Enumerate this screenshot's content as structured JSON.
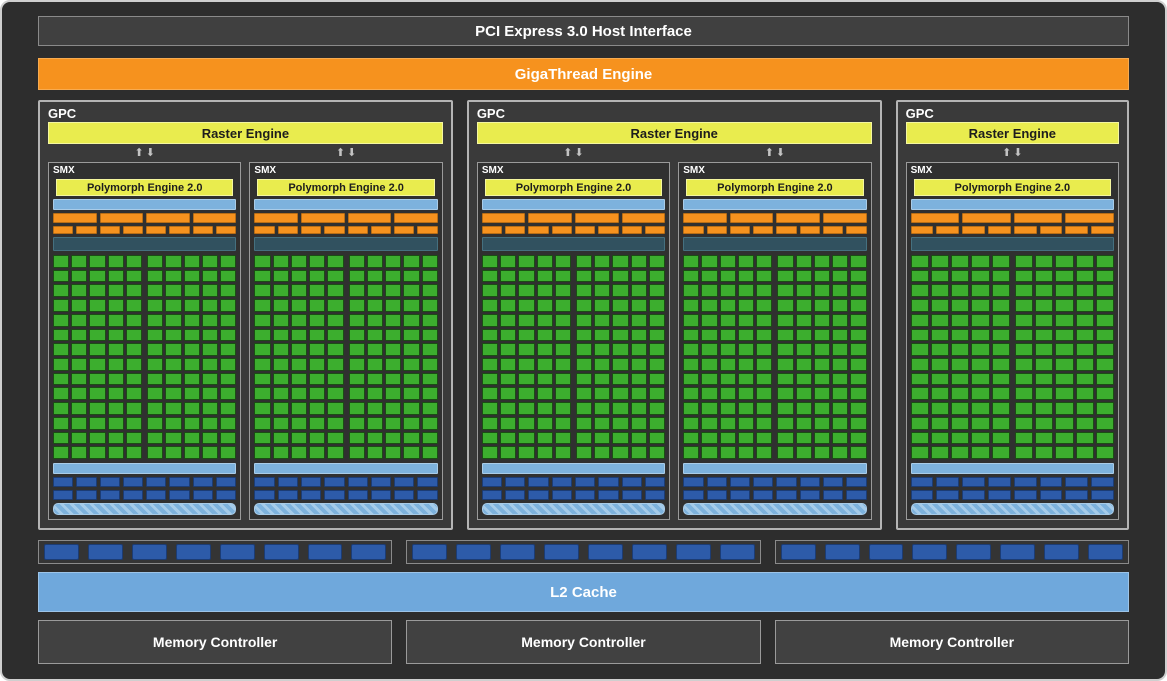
{
  "header": {
    "pci_label": "PCI Express 3.0 Host Interface",
    "gigathread_label": "GigaThread Engine"
  },
  "gpc": {
    "label": "GPC",
    "raster_label": "Raster Engine",
    "instances": [
      {
        "smx_count": 2
      },
      {
        "smx_count": 2
      },
      {
        "smx_count": 1
      }
    ],
    "smx": {
      "label": "SMX",
      "polymorph_label": "Polymorph Engine 2.0",
      "core_columns": 10,
      "core_rows": 14,
      "scheduler_segments": 4,
      "dispatch_segments": 8,
      "texture_rows": 2,
      "texture_segments": 8
    }
  },
  "rops": {
    "group_count": 3,
    "segments_per_group": 8
  },
  "l2_label": "L2 Cache",
  "memory": {
    "label": "Memory Controller",
    "count": 3
  },
  "icons": {
    "up_arrow": "⬆",
    "down_arrow": "⬇"
  },
  "colors": {
    "background": "#2d2d2d",
    "orange": "#f6921e",
    "yellow": "#e9ec4e",
    "core_green": "#3cae2e",
    "light_blue": "#6fa8dc",
    "dark_blue": "#2d5ba9",
    "slate": "#31515f"
  }
}
